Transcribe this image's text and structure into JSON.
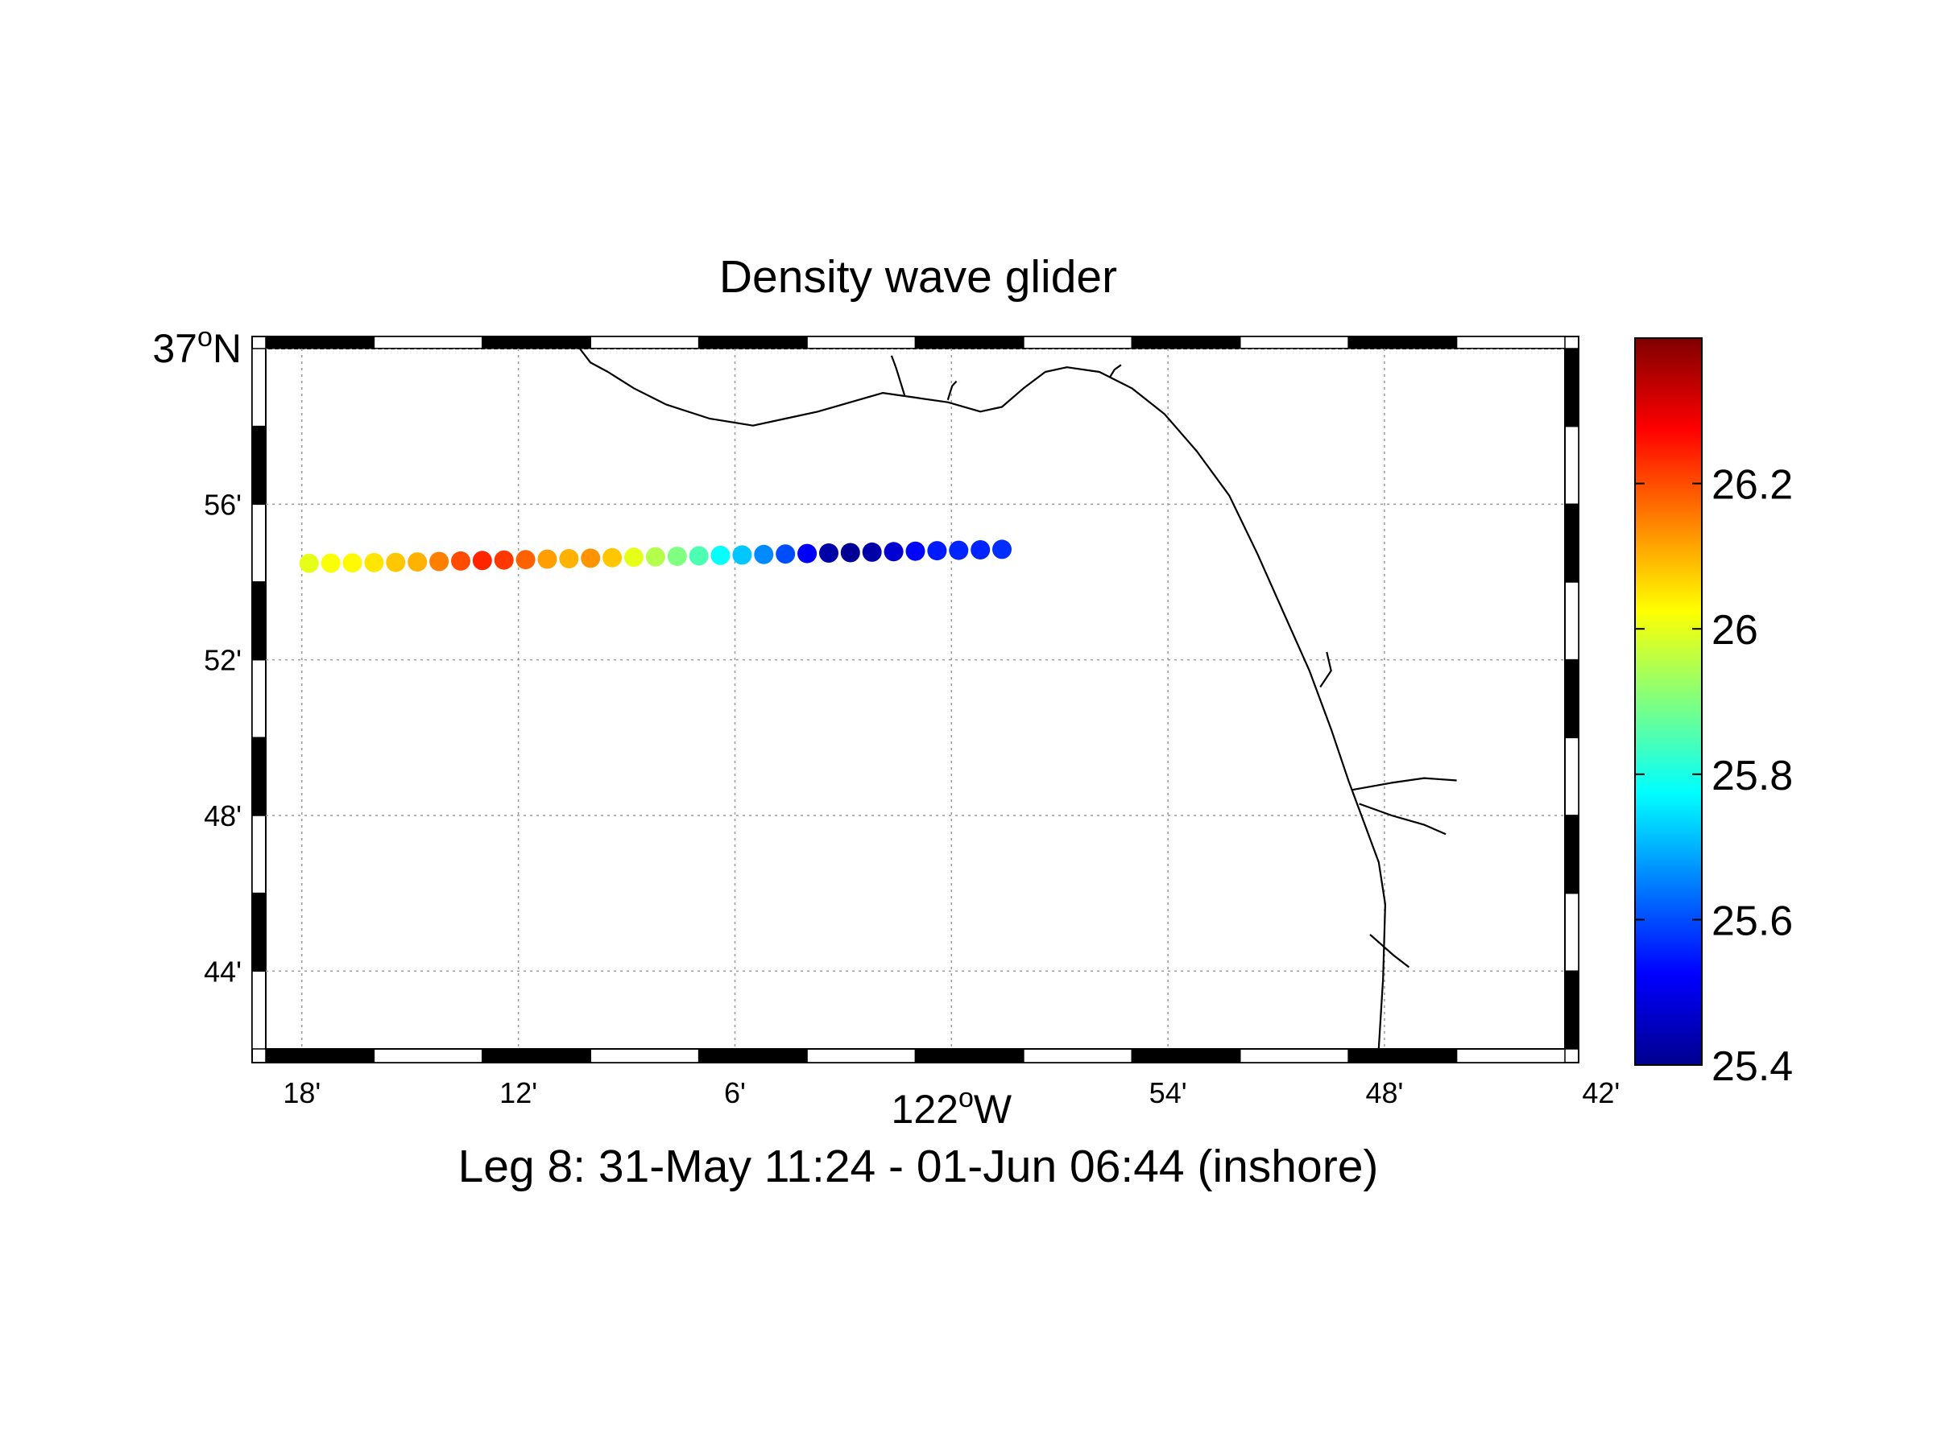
{
  "chart_data": {
    "type": "scatter",
    "title": "Density wave glider",
    "subtitle": "Leg 8: 31-May 11:24 - 01-Jun 06:44 (inshore)",
    "map": {
      "lon_range": [
        -122.3,
        -121.7
      ],
      "lat_range": [
        36.7,
        37.0
      ],
      "lon_ticks": [
        {
          "value": -122.28333,
          "label": "18'"
        },
        {
          "value": -122.18333,
          "label": "12'"
        },
        {
          "value": -122.08333,
          "label": "6'"
        },
        {
          "value": -121.98333,
          "label": "122",
          "sup": "o",
          "suffix": "W"
        },
        {
          "value": -121.88333,
          "label": "54'"
        },
        {
          "value": -121.78333,
          "label": "48'"
        },
        {
          "value": -121.68333,
          "label": "42'"
        }
      ],
      "lat_ticks": [
        {
          "value": 37.0,
          "label": "37",
          "sup": "o",
          "suffix": "N"
        },
        {
          "value": 36.93333,
          "label": "56'"
        },
        {
          "value": 36.86667,
          "label": "52'"
        },
        {
          "value": 36.8,
          "label": "48'"
        },
        {
          "value": 36.73333,
          "label": "44'"
        }
      ],
      "grid": true
    },
    "colorbar": {
      "range": [
        25.4,
        26.4
      ],
      "colormap": "jet",
      "ticks": [
        "25.4",
        "25.6",
        "25.8",
        "26",
        "26.2"
      ]
    },
    "track": [
      {
        "lon": -122.28,
        "lat": 36.908,
        "value": 26.0
      },
      {
        "lon": -122.27,
        "lat": 36.9081,
        "value": 26.02
      },
      {
        "lon": -122.26,
        "lat": 36.9082,
        "value": 26.03
      },
      {
        "lon": -122.25,
        "lat": 36.9083,
        "value": 26.05
      },
      {
        "lon": -122.24,
        "lat": 36.9084,
        "value": 26.08
      },
      {
        "lon": -122.23,
        "lat": 36.9086,
        "value": 26.1
      },
      {
        "lon": -122.22,
        "lat": 36.9088,
        "value": 26.15
      },
      {
        "lon": -122.21,
        "lat": 36.909,
        "value": 26.2
      },
      {
        "lon": -122.2,
        "lat": 36.9092,
        "value": 26.24
      },
      {
        "lon": -122.19,
        "lat": 36.9094,
        "value": 26.22
      },
      {
        "lon": -122.18,
        "lat": 36.9096,
        "value": 26.18
      },
      {
        "lon": -122.17,
        "lat": 36.9098,
        "value": 26.12
      },
      {
        "lon": -122.16,
        "lat": 36.91,
        "value": 26.1
      },
      {
        "lon": -122.15,
        "lat": 36.9102,
        "value": 26.13
      },
      {
        "lon": -122.14,
        "lat": 36.9104,
        "value": 26.08
      },
      {
        "lon": -122.13,
        "lat": 36.9106,
        "value": 26.0
      },
      {
        "lon": -122.12,
        "lat": 36.9108,
        "value": 25.95
      },
      {
        "lon": -122.11,
        "lat": 36.911,
        "value": 25.9
      },
      {
        "lon": -122.1,
        "lat": 36.9112,
        "value": 25.85
      },
      {
        "lon": -122.09,
        "lat": 36.9114,
        "value": 25.78
      },
      {
        "lon": -122.08,
        "lat": 36.9116,
        "value": 25.72
      },
      {
        "lon": -122.07,
        "lat": 36.9118,
        "value": 25.66
      },
      {
        "lon": -122.06,
        "lat": 36.912,
        "value": 25.6
      },
      {
        "lon": -122.05,
        "lat": 36.9122,
        "value": 25.52
      },
      {
        "lon": -122.04,
        "lat": 36.9124,
        "value": 25.44
      },
      {
        "lon": -122.03,
        "lat": 36.9126,
        "value": 25.42
      },
      {
        "lon": -122.02,
        "lat": 36.9128,
        "value": 25.44
      },
      {
        "lon": -122.01,
        "lat": 36.913,
        "value": 25.48
      },
      {
        "lon": -122.0,
        "lat": 36.9132,
        "value": 25.53
      },
      {
        "lon": -121.99,
        "lat": 36.9134,
        "value": 25.55
      },
      {
        "lon": -121.98,
        "lat": 36.9136,
        "value": 25.56
      },
      {
        "lon": -121.97,
        "lat": 36.9138,
        "value": 25.56
      },
      {
        "lon": -121.96,
        "lat": 36.914,
        "value": 25.57
      }
    ],
    "coastline": [
      [
        [
          -122.155,
          37.0
        ],
        [
          -122.15,
          36.994
        ],
        [
          -122.142,
          36.99
        ],
        [
          -122.13,
          36.983
        ],
        [
          -122.115,
          36.976
        ],
        [
          -122.095,
          36.97
        ],
        [
          -122.075,
          36.967
        ],
        [
          -122.06,
          36.97
        ],
        [
          -122.045,
          36.973
        ],
        [
          -122.03,
          36.977
        ],
        [
          -122.015,
          36.981
        ],
        [
          -122.0,
          36.979
        ],
        [
          -121.985,
          36.977
        ],
        [
          -121.97,
          36.973
        ],
        [
          -121.96,
          36.975
        ],
        [
          -121.95,
          36.983
        ],
        [
          -121.94,
          36.99
        ],
        [
          -121.93,
          36.992
        ],
        [
          -121.915,
          36.99
        ],
        [
          -121.9,
          36.983
        ],
        [
          -121.885,
          36.972
        ],
        [
          -121.87,
          36.956
        ],
        [
          -121.855,
          36.937
        ],
        [
          -121.842,
          36.912
        ],
        [
          -121.83,
          36.887
        ],
        [
          -121.818,
          36.862
        ],
        [
          -121.808,
          36.837
        ],
        [
          -121.8,
          36.815
        ],
        [
          -121.792,
          36.795
        ],
        [
          -121.786,
          36.78
        ],
        [
          -121.783,
          36.762
        ],
        [
          -121.784,
          36.73
        ],
        [
          -121.786,
          36.7
        ]
      ],
      [
        [
          -122.005,
          36.98
        ],
        [
          -122.007,
          36.986
        ],
        [
          -122.009,
          36.992
        ],
        [
          -122.011,
          36.997
        ]
      ],
      [
        [
          -121.985,
          36.978
        ],
        [
          -121.983,
          36.984
        ],
        [
          -121.981,
          36.986
        ]
      ],
      [
        [
          -121.91,
          36.988
        ],
        [
          -121.908,
          36.991
        ],
        [
          -121.905,
          36.993
        ]
      ],
      [
        [
          -121.813,
          36.855
        ],
        [
          -121.808,
          36.862
        ],
        [
          -121.81,
          36.87
        ]
      ],
      [
        [
          -121.798,
          36.811
        ],
        [
          -121.78,
          36.814
        ],
        [
          -121.765,
          36.816
        ],
        [
          -121.75,
          36.815
        ]
      ],
      [
        [
          -121.795,
          36.805
        ],
        [
          -121.78,
          36.8
        ],
        [
          -121.765,
          36.796
        ],
        [
          -121.755,
          36.792
        ]
      ],
      [
        [
          -121.79,
          36.749
        ],
        [
          -121.779,
          36.74
        ],
        [
          -121.772,
          36.735
        ]
      ]
    ]
  }
}
